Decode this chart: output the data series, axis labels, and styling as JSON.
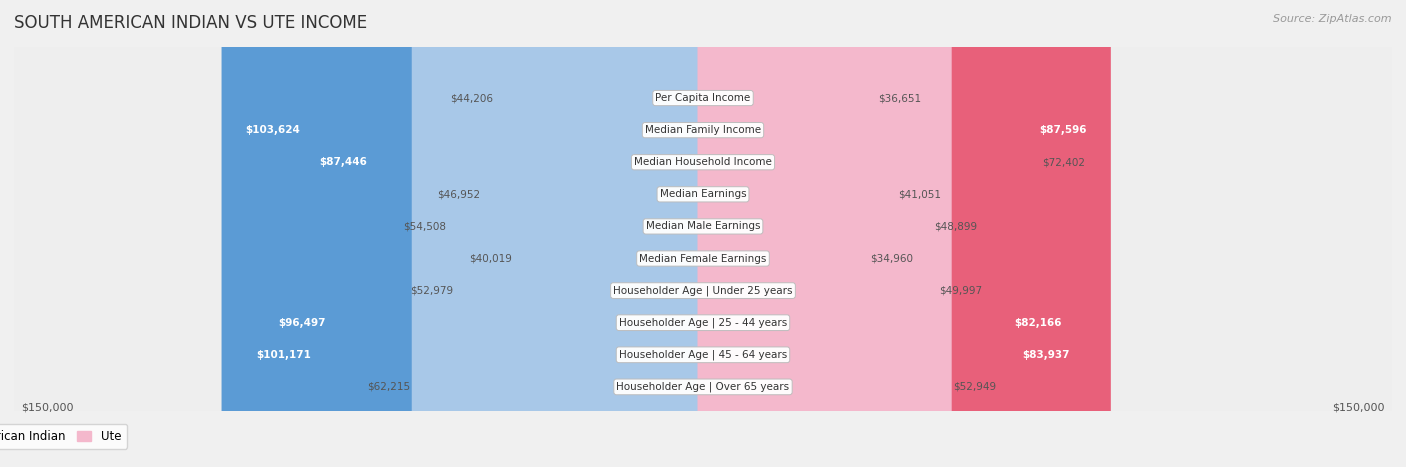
{
  "title": "SOUTH AMERICAN INDIAN VS UTE INCOME",
  "source": "Source: ZipAtlas.com",
  "categories": [
    "Per Capita Income",
    "Median Family Income",
    "Median Household Income",
    "Median Earnings",
    "Median Male Earnings",
    "Median Female Earnings",
    "Householder Age | Under 25 years",
    "Householder Age | 25 - 44 years",
    "Householder Age | 45 - 64 years",
    "Householder Age | Over 65 years"
  ],
  "south_american_indian": [
    44206,
    103624,
    87446,
    46952,
    54508,
    40019,
    52979,
    96497,
    101171,
    62215
  ],
  "ute": [
    36651,
    87596,
    72402,
    41051,
    48899,
    34960,
    49997,
    82166,
    83937,
    52949
  ],
  "south_american_indian_labels": [
    "$44,206",
    "$103,624",
    "$87,446",
    "$46,952",
    "$54,508",
    "$40,019",
    "$52,979",
    "$96,497",
    "$101,171",
    "$62,215"
  ],
  "ute_labels": [
    "$36,651",
    "$87,596",
    "$72,402",
    "$41,051",
    "$48,899",
    "$34,960",
    "$49,997",
    "$82,166",
    "$83,937",
    "$52,949"
  ],
  "sai_label_inside": [
    false,
    true,
    true,
    false,
    false,
    false,
    false,
    true,
    true,
    false
  ],
  "ute_label_inside": [
    false,
    true,
    false,
    false,
    false,
    false,
    false,
    true,
    true,
    false
  ],
  "max_value": 150000,
  "color_sai_light": "#a8c8e8",
  "color_sai_dark": "#5b9bd5",
  "color_ute_light": "#f4b8cc",
  "color_ute_dark": "#e8607a",
  "bg_color": "#f0f0f0",
  "row_color_odd": "#f8f8f8",
  "row_color_even": "#eeeeee",
  "title_fontsize": 12,
  "source_fontsize": 8,
  "category_fontsize": 7.5,
  "value_fontsize": 7.5,
  "axis_fontsize": 8,
  "legend_fontsize": 8.5,
  "ylabel_bottom": "$150,000",
  "ylabel_bottom_right": "$150,000"
}
